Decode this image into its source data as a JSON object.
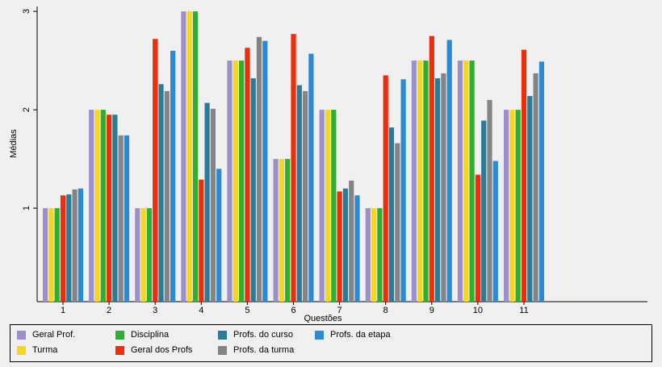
{
  "chart_data": {
    "type": "bar",
    "xlabel": "Questões",
    "ylabel": "Médias",
    "ylim": [
      0.05,
      3.05
    ],
    "yticks": [
      1,
      2,
      3
    ],
    "grid": false,
    "legend_position": "bottom",
    "categories": [
      "1",
      "2",
      "3",
      "4",
      "5",
      "6",
      "7",
      "8",
      "9",
      "10",
      "11"
    ],
    "series": [
      {
        "name": "Geral Prof.",
        "color": "#9b8fce",
        "values": [
          1,
          2,
          1,
          3,
          2.5,
          1.5,
          2,
          1,
          2.5,
          2.5,
          2
        ]
      },
      {
        "name": "Turma",
        "color": "#f7d622",
        "values": [
          1,
          2,
          1,
          3,
          2.5,
          1.5,
          2,
          1,
          2.5,
          2.5,
          2
        ]
      },
      {
        "name": "Disciplina",
        "color": "#2db02d",
        "values": [
          1,
          2,
          1,
          3,
          2.5,
          1.5,
          2,
          1,
          2.5,
          2.5,
          2
        ]
      },
      {
        "name": "Geral dos Profs",
        "color": "#f02d0a",
        "values": [
          1.13,
          1.95,
          2.72,
          1.29,
          2.63,
          2.77,
          1.17,
          2.35,
          2.75,
          1.34,
          2.61
        ]
      },
      {
        "name": "Profs. do curso",
        "color": "#2a7b98",
        "values": [
          1.14,
          1.95,
          2.26,
          2.07,
          2.32,
          2.25,
          1.2,
          1.82,
          2.32,
          1.89,
          2.14
        ]
      },
      {
        "name": "Profs. da turma",
        "color": "#848484",
        "values": [
          1.19,
          1.74,
          2.19,
          2.01,
          2.74,
          2.19,
          1.28,
          1.66,
          2.37,
          2.1,
          2.37
        ]
      },
      {
        "name": "Profs. da etapa",
        "color": "#2c8ad4",
        "values": [
          1.2,
          1.74,
          2.6,
          1.4,
          2.7,
          2.57,
          1.13,
          2.31,
          2.71,
          1.48,
          2.49
        ]
      }
    ]
  }
}
